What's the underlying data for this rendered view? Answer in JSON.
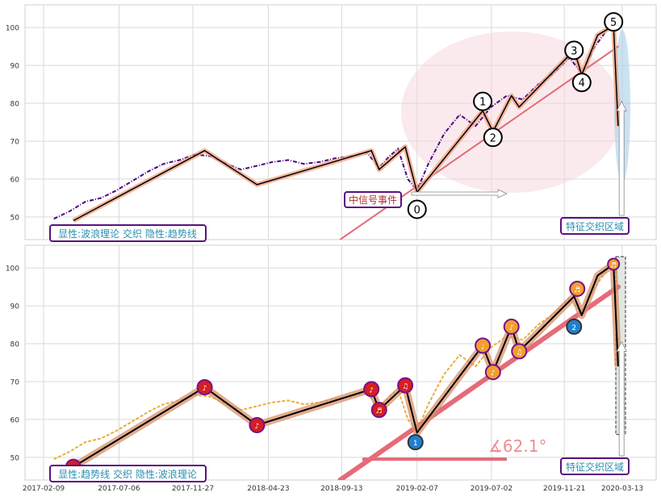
{
  "chart_data": [
    {
      "type": "line",
      "panel": "top",
      "ylim": [
        44,
        106
      ],
      "yticks": [
        50,
        60,
        70,
        80,
        90,
        100
      ],
      "grid": true,
      "series": [
        {
          "style": "dash-dot",
          "color": "#4b0082",
          "values": [
            [
              "2017-03-01",
              49.5
            ],
            [
              "2017-04-01",
              51.5
            ],
            [
              "2017-05-01",
              54
            ],
            [
              "2017-06-01",
              55
            ],
            [
              "2017-07-01",
              57
            ],
            [
              "2017-08-01",
              59.5
            ],
            [
              "2017-09-01",
              62
            ],
            [
              "2017-10-01",
              64
            ],
            [
              "2017-11-01",
              65
            ],
            [
              "2017-12-01",
              66.5
            ],
            [
              "2018-01-01",
              66
            ],
            [
              "2018-02-01",
              64
            ],
            [
              "2018-03-01",
              62.5
            ],
            [
              "2018-04-01",
              63.5
            ],
            [
              "2018-05-01",
              64.5
            ],
            [
              "2018-06-01",
              65
            ],
            [
              "2018-07-01",
              64
            ],
            [
              "2018-08-01",
              64.5
            ],
            [
              "2018-09-01",
              65.5
            ],
            [
              "2018-10-01",
              66
            ],
            [
              "2018-11-01",
              67
            ],
            [
              "2018-11-25",
              63
            ],
            [
              "2018-12-15",
              66
            ],
            [
              "2019-01-01",
              68
            ],
            [
              "2019-01-20",
              60
            ],
            [
              "2019-02-07",
              57
            ],
            [
              "2019-03-01",
              64
            ],
            [
              "2019-04-01",
              72
            ],
            [
              "2019-05-01",
              77
            ],
            [
              "2019-06-01",
              74
            ],
            [
              "2019-07-01",
              79
            ],
            [
              "2019-08-01",
              82
            ],
            [
              "2019-09-01",
              81
            ],
            [
              "2019-10-01",
              85
            ],
            [
              "2019-11-01",
              88
            ],
            [
              "2019-12-01",
              92
            ],
            [
              "2019-12-25",
              88
            ],
            [
              "2020-01-20",
              95
            ],
            [
              "2020-02-10",
              99
            ]
          ]
        }
      ],
      "wave_path": [
        [
          "2017-04-08",
          49
        ],
        [
          "2017-12-20",
          67.5
        ],
        [
          "2018-04-01",
          58.5
        ],
        [
          "2018-11-10",
          67.5
        ],
        [
          "2018-11-25",
          62.5
        ],
        [
          "2019-01-15",
          68.5
        ],
        [
          "2019-02-07",
          56.5
        ],
        [
          "2019-06-15",
          78
        ],
        [
          "2019-07-05",
          72.5
        ],
        [
          "2019-08-10",
          82
        ],
        [
          "2019-08-25",
          79
        ],
        [
          "2019-12-10",
          94
        ],
        [
          "2019-12-25",
          87.5
        ],
        [
          "2020-01-25",
          98
        ],
        [
          "2020-02-25",
          100.5
        ],
        [
          "2020-03-05",
          74
        ]
      ],
      "trend_line": [
        [
          "2018-09-10",
          44
        ],
        [
          "2020-03-05",
          95
        ]
      ],
      "wave_labels": [
        {
          "label": "0",
          "date": "2019-02-07",
          "y": 52
        },
        {
          "label": "1",
          "date": "2019-06-15",
          "y": 80.5
        },
        {
          "label": "2",
          "date": "2019-07-05",
          "y": 71
        },
        {
          "label": "3",
          "date": "2019-12-10",
          "y": 94
        },
        {
          "label": "4",
          "date": "2019-12-25",
          "y": 85.5
        },
        {
          "label": "5",
          "date": "2020-02-25",
          "y": 101.5
        }
      ],
      "annotations": [
        {
          "id": "signal",
          "text": "中信号事件"
        },
        {
          "id": "zone",
          "text": "特征交织区域"
        },
        {
          "id": "caption",
          "text": "显性:波浪理论 交织 隐性:趋势线"
        }
      ]
    },
    {
      "type": "line",
      "panel": "bottom",
      "ylim": [
        44,
        106
      ],
      "yticks": [
        50,
        60,
        70,
        80,
        90,
        100
      ],
      "grid": true,
      "x_tick_labels": [
        "2017-02-09",
        "2017-07-06",
        "2017-11-27",
        "2018-04-23",
        "2018-09-13",
        "2019-02-07",
        "2019-07-02",
        "2019-11-21",
        "2020-03-13"
      ],
      "series": [
        {
          "style": "dashed",
          "color": "#e8b03a",
          "values": [
            [
              "2017-03-01",
              49.5
            ],
            [
              "2017-04-01",
              51.5
            ],
            [
              "2017-05-01",
              54
            ],
            [
              "2017-06-01",
              55
            ],
            [
              "2017-07-01",
              57
            ],
            [
              "2017-08-01",
              59.5
            ],
            [
              "2017-09-01",
              62
            ],
            [
              "2017-10-01",
              64
            ],
            [
              "2017-11-01",
              65
            ],
            [
              "2017-12-01",
              66.5
            ],
            [
              "2018-01-01",
              66
            ],
            [
              "2018-02-01",
              64
            ],
            [
              "2018-03-01",
              62.5
            ],
            [
              "2018-04-01",
              63.5
            ],
            [
              "2018-05-01",
              64.5
            ],
            [
              "2018-06-01",
              65
            ],
            [
              "2018-07-01",
              64
            ],
            [
              "2018-08-01",
              64.5
            ],
            [
              "2018-09-01",
              65.5
            ],
            [
              "2018-10-01",
              66
            ],
            [
              "2018-11-01",
              67
            ],
            [
              "2018-11-25",
              63
            ],
            [
              "2018-12-15",
              66
            ],
            [
              "2019-01-01",
              68
            ],
            [
              "2019-01-20",
              60
            ],
            [
              "2019-02-07",
              57
            ],
            [
              "2019-03-01",
              64
            ],
            [
              "2019-04-01",
              72
            ],
            [
              "2019-05-01",
              77
            ],
            [
              "2019-06-01",
              74
            ],
            [
              "2019-07-01",
              79
            ],
            [
              "2019-08-01",
              82
            ],
            [
              "2019-09-01",
              81
            ],
            [
              "2019-10-01",
              85
            ],
            [
              "2019-11-01",
              88
            ],
            [
              "2019-12-01",
              92
            ],
            [
              "2019-12-25",
              88
            ],
            [
              "2020-01-20",
              95
            ],
            [
              "2020-02-10",
              99
            ]
          ]
        }
      ],
      "wave_path": [
        [
          "2017-04-08",
          47.5
        ],
        [
          "2017-12-20",
          68.5
        ],
        [
          "2018-04-01",
          58.5
        ],
        [
          "2018-11-10",
          68
        ],
        [
          "2018-11-25",
          62.5
        ],
        [
          "2019-01-15",
          69
        ],
        [
          "2019-02-07",
          56.5
        ],
        [
          "2019-06-15",
          79.5
        ],
        [
          "2019-07-05",
          72.5
        ],
        [
          "2019-08-10",
          84.5
        ],
        [
          "2019-08-25",
          78
        ],
        [
          "2019-12-10",
          92.5
        ],
        [
          "2019-12-25",
          87.5
        ],
        [
          "2020-01-25",
          98
        ],
        [
          "2020-02-25",
          101
        ],
        [
          "2020-03-05",
          74
        ]
      ],
      "trend_line": [
        [
          "2018-09-10",
          44
        ],
        [
          "2020-03-05",
          95
        ]
      ],
      "angle_label": "∡62.1°",
      "annotations": [
        {
          "id": "zone",
          "text": "特征交织区域"
        },
        {
          "id": "caption",
          "text": "显性:趋势线 交织 隐性:波浪理论"
        }
      ]
    }
  ],
  "colors": {
    "wave": "#000000",
    "wave_halo_top": "#f0a080",
    "wave_halo_bottom": "#d8906a",
    "trend": "#e56b78",
    "marker_red": "#d42020",
    "marker_orange": "#f0a030",
    "marker_blue": "#2080d0",
    "marker_ring": "#7a0f8a",
    "box_border": "#5a1080",
    "box_text": "#2a8fb0",
    "signal_text": "#b03030",
    "ellipse_fill": "#f5d6dc",
    "zone_fill": "#a8cfe8"
  }
}
